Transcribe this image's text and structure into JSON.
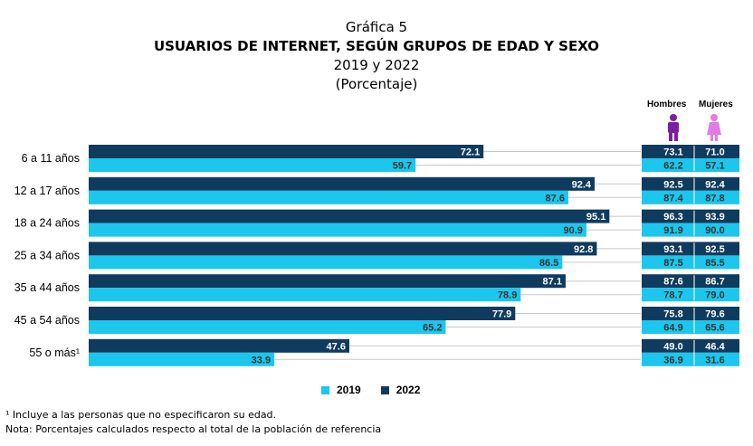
{
  "titles": {
    "line1": "Gráfica 5",
    "line2": "USUARIOS DE INTERNET, SEGÚN GRUPOS DE EDAD Y SEXO",
    "line3": "2019 y 2022",
    "line4": "(Porcentaje)"
  },
  "legend": {
    "label_2019": "2019",
    "label_2022": "2022"
  },
  "side_table": {
    "header_men": "Hombres",
    "header_women": "Mujeres",
    "icon_men": "male-person-icon",
    "icon_women": "female-person-icon"
  },
  "footnotes": {
    "note1": "¹ Incluye a las personas que no especificaron su edad.",
    "note2": "Nota: Porcentajes calculados respecto al total de la población de referencia"
  },
  "colors": {
    "series_2022": "#0f3b5e",
    "series_2019": "#1cc6ec",
    "men_icon": "#7b1fa2",
    "women_icon": "#e27be8"
  },
  "chart_data": {
    "type": "bar",
    "orientation": "horizontal",
    "categories": [
      "6 a 11 años",
      "12 a 17 años",
      "18 a 24 años",
      "25 a 34 años",
      "35 a 44 años",
      "45 a 54 años",
      "55 o más¹"
    ],
    "series": [
      {
        "name": "2022",
        "values": [
          72.1,
          92.4,
          95.1,
          92.8,
          87.1,
          77.9,
          47.6
        ]
      },
      {
        "name": "2019",
        "values": [
          59.7,
          87.6,
          90.9,
          86.5,
          78.9,
          65.2,
          33.9
        ]
      }
    ],
    "by_sex": {
      "hombres_2022": [
        73.1,
        92.5,
        96.3,
        93.1,
        87.6,
        75.8,
        49.0
      ],
      "hombres_2019": [
        62.2,
        87.4,
        91.9,
        87.5,
        78.7,
        64.9,
        36.9
      ],
      "mujeres_2022": [
        71.0,
        92.4,
        93.9,
        92.5,
        86.7,
        79.6,
        46.4
      ],
      "mujeres_2019": [
        57.1,
        87.8,
        90.0,
        85.5,
        79.0,
        65.6,
        31.6
      ]
    },
    "xlim": [
      0,
      100
    ],
    "legend_position": "bottom-center",
    "grid": false
  }
}
